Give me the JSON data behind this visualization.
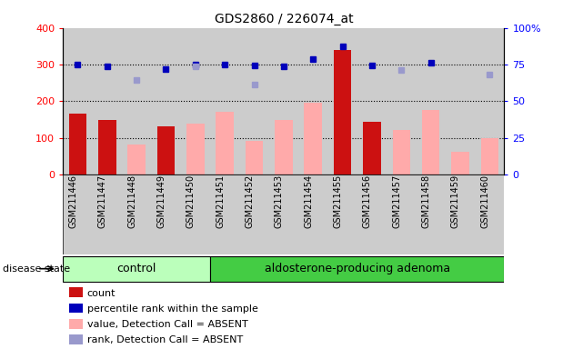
{
  "title": "GDS2860 / 226074_at",
  "samples": [
    "GSM211446",
    "GSM211447",
    "GSM211448",
    "GSM211449",
    "GSM211450",
    "GSM211451",
    "GSM211452",
    "GSM211453",
    "GSM211454",
    "GSM211455",
    "GSM211456",
    "GSM211457",
    "GSM211458",
    "GSM211459",
    "GSM211460"
  ],
  "count_values": [
    165,
    148,
    0,
    132,
    0,
    0,
    0,
    0,
    0,
    340,
    143,
    0,
    0,
    0,
    0
  ],
  "percentile_rank": [
    300,
    296,
    null,
    288,
    300,
    300,
    298,
    296,
    314,
    350,
    298,
    null,
    304,
    null,
    null
  ],
  "absent_value": [
    null,
    null,
    82,
    null,
    140,
    170,
    93,
    148,
    196,
    null,
    null,
    122,
    176,
    62,
    100
  ],
  "absent_rank": [
    null,
    null,
    258,
    null,
    296,
    null,
    246,
    null,
    null,
    null,
    null,
    284,
    null,
    null,
    272
  ],
  "control_count": 5,
  "disease_count": 10,
  "ylim_left": [
    0,
    400
  ],
  "ylim_right": [
    0,
    100
  ],
  "yticks_left": [
    0,
    100,
    200,
    300,
    400
  ],
  "yticks_right": [
    0,
    25,
    50,
    75,
    100
  ],
  "grid_values": [
    100,
    200,
    300
  ],
  "bar_color_count": "#cc1111",
  "bar_color_absent": "#ffaaaa",
  "dot_color_present": "#0000bb",
  "dot_color_absent": "#9999cc",
  "plot_bg": "#cccccc",
  "control_bg": "#bbffbb",
  "disease_bg": "#44cc44",
  "legend_labels": [
    "count",
    "percentile rank within the sample",
    "value, Detection Call = ABSENT",
    "rank, Detection Call = ABSENT"
  ],
  "legend_colors": [
    "#cc1111",
    "#0000bb",
    "#ffaaaa",
    "#9999cc"
  ],
  "disease_state_label": "disease state",
  "control_label": "control",
  "disease_label": "aldosterone-producing adenoma"
}
